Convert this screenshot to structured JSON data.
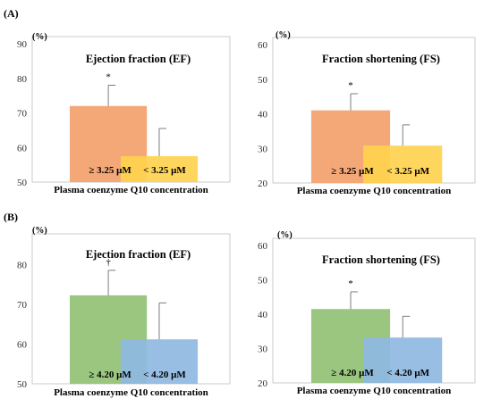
{
  "sections": [
    {
      "label": "(A)"
    },
    {
      "label": "(B)"
    }
  ],
  "chart_data": [
    {
      "type": "bar",
      "title": "Ejection fraction (EF)",
      "ylabel": "(%)",
      "xlabel": "Plasma coenzyme Q10 concentration",
      "ylim": [
        50,
        90
      ],
      "yticks": [
        50,
        60,
        70,
        80,
        90
      ],
      "categories": [
        "≥ 3.25 μM",
        "< 3.25 μM"
      ],
      "values": [
        72,
        57.5
      ],
      "error": [
        6,
        8
      ],
      "colors": [
        "#F4A777",
        "#FFD34F"
      ],
      "annotations": [
        "*",
        ""
      ]
    },
    {
      "type": "bar",
      "title": "Fraction shortening (FS)",
      "ylabel": "(%)",
      "xlabel": "Plasma coenzyme Q10 concentration",
      "ylim": [
        20,
        60
      ],
      "yticks": [
        20,
        30,
        40,
        50,
        60
      ],
      "categories": [
        "≥ 3.25 μM",
        "< 3.25 μM"
      ],
      "values": [
        41,
        30.8
      ],
      "error": [
        4.8,
        6
      ],
      "colors": [
        "#F4A777",
        "#FFD34F"
      ],
      "annotations": [
        "*",
        ""
      ]
    },
    {
      "type": "bar",
      "title": "Ejection fraction (EF)",
      "ylabel": "(%)",
      "xlabel": "Plasma coenzyme Q10 concentration",
      "ylim": [
        50,
        85
      ],
      "yticks": [
        50,
        60,
        70,
        80
      ],
      "categories": [
        "≥ 4.20 μM",
        "< 4.20 μM"
      ],
      "values": [
        72.3,
        61.2
      ],
      "error": [
        6.3,
        9.2
      ],
      "colors": [
        "#9BC67F",
        "#8FB8E2"
      ],
      "annotations": [
        "†",
        ""
      ]
    },
    {
      "type": "bar",
      "title": "Fraction shortening (FS)",
      "ylabel": "(%)",
      "xlabel": "Plasma coenzyme Q10 concentration",
      "ylim": [
        20,
        60
      ],
      "yticks": [
        20,
        30,
        40,
        50,
        60
      ],
      "categories": [
        "≥ 4.20 μM",
        "< 4.20 μM"
      ],
      "values": [
        41.5,
        33.2
      ],
      "error": [
        5,
        6.2
      ],
      "colors": [
        "#9BC67F",
        "#8FB8E2"
      ],
      "annotations": [
        "*",
        ""
      ]
    }
  ]
}
